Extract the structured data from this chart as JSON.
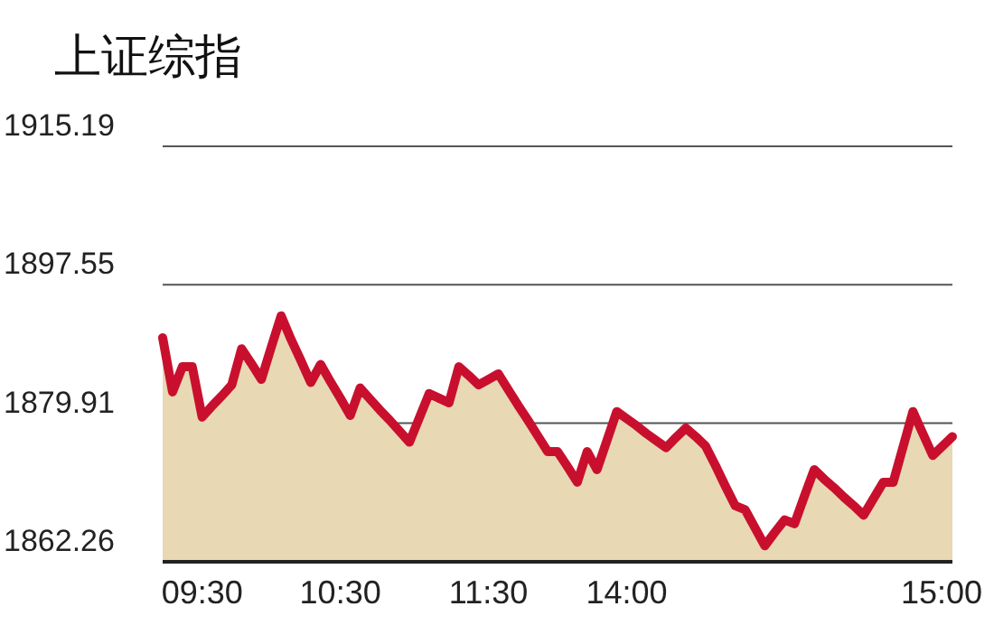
{
  "chart_data": {
    "type": "area",
    "title": "上证综指",
    "categories": [
      null,
      null,
      null,
      null,
      "09:30",
      null,
      null,
      null,
      null,
      null,
      null,
      null,
      null,
      null,
      null,
      null,
      null,
      null,
      "10:30",
      null,
      null,
      null,
      null,
      null,
      null,
      null,
      null,
      null,
      null,
      null,
      null,
      null,
      null,
      "11:30",
      null,
      null,
      null,
      null,
      null,
      null,
      null,
      null,
      null,
      null,
      null,
      null,
      null,
      "14:00",
      null,
      null,
      null,
      null,
      null,
      null,
      null,
      null,
      null,
      null,
      null,
      null,
      null,
      null,
      null,
      null,
      null,
      null,
      null,
      null,
      null,
      null,
      null,
      null,
      null,
      null,
      null,
      null,
      null,
      null,
      null,
      "15:00",
      null
    ],
    "series": [
      {
        "color": "#c8102e",
        "values": [
          1890.8,
          1883.9,
          1887.1,
          1887.1,
          1880.7,
          1882.1,
          1883.4,
          1884.8,
          1889.4,
          1887.5,
          1885.5,
          1889.6,
          1893.6,
          1890.6,
          1887.9,
          1885.1,
          1887.4,
          1885.2,
          1883.1,
          1880.9,
          1884.4,
          1883.0,
          1881.6,
          1880.3,
          1878.9,
          1877.5,
          1880.6,
          1883.7,
          1883.1,
          1882.5,
          1887.1,
          1886.0,
          1884.8,
          1885.5,
          1886.2,
          1884.2,
          1882.2,
          1880.3,
          1878.3,
          1876.3,
          1876.3,
          1874.4,
          1872.4,
          1876.3,
          1874.0,
          1877.7,
          1881.4,
          1880.5,
          1879.6,
          1878.6,
          1877.7,
          1876.8,
          1878.1,
          1879.3,
          1878.2,
          1877.0,
          1874.5,
          1871.9,
          1869.4,
          1868.9,
          1866.6,
          1864.3,
          1866.0,
          1867.6,
          1867.1,
          1870.6,
          1874.0,
          1872.8,
          1871.7,
          1870.5,
          1869.4,
          1868.2,
          1870.3,
          1872.4,
          1872.4,
          1876.9,
          1881.4,
          1878.6,
          1875.8,
          1877.0,
          1878.2
        ]
      }
    ],
    "ylim": [
      1862.26,
      1915.19
    ],
    "yticks": [
      1862.26,
      1879.91,
      1897.55,
      1915.19
    ],
    "grid": "y"
  }
}
